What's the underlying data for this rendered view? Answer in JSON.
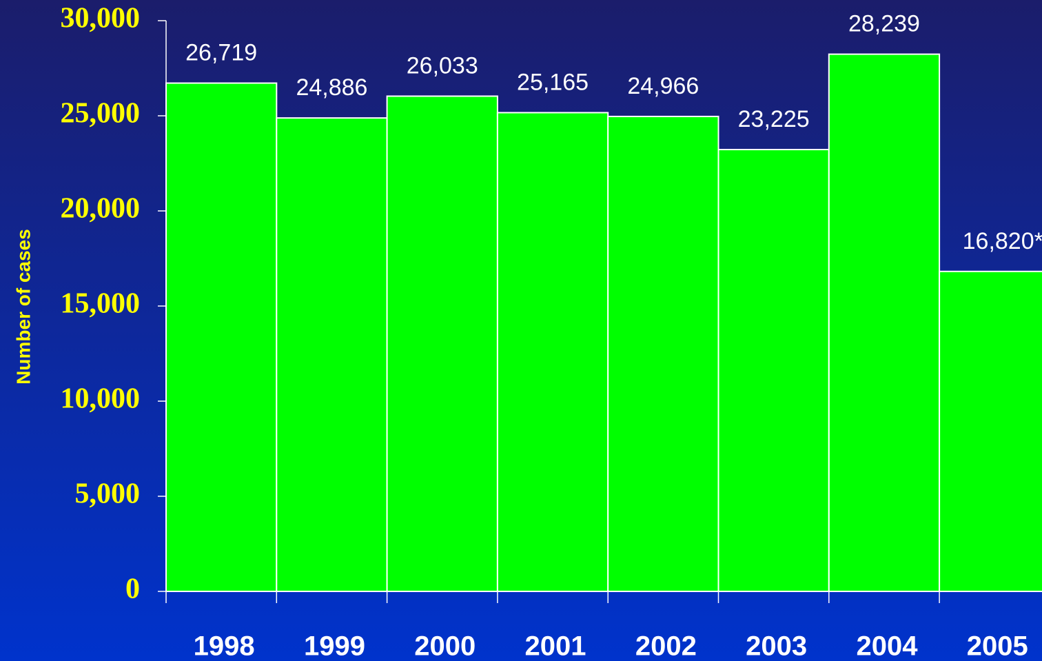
{
  "chart_data": {
    "type": "bar",
    "y_label": "Number of cases",
    "categories": [
      "1998",
      "1999",
      "2000",
      "2001",
      "2002",
      "2003",
      "2004",
      "2005"
    ],
    "values": [
      26719,
      24886,
      26033,
      25165,
      24966,
      23225,
      28239,
      16820
    ],
    "value_labels": [
      "26,719",
      "24,886",
      "26,033",
      "25,165",
      "24,966",
      "23,225",
      "28,239",
      "16,820*"
    ],
    "color": "#00ff00",
    "ylim": [
      0,
      30000
    ],
    "yticks": [
      0,
      {
        "value": 5000,
        "label": "5,000"
      },
      {
        "value": 10000,
        "label": "10,000"
      },
      {
        "value": 15000,
        "label": "15,000"
      },
      {
        "value": 20000,
        "label": "20,000"
      },
      {
        "value": 25000,
        "label": "25,000"
      },
      {
        "value": 30000,
        "label": "30,000"
      }
    ]
  }
}
